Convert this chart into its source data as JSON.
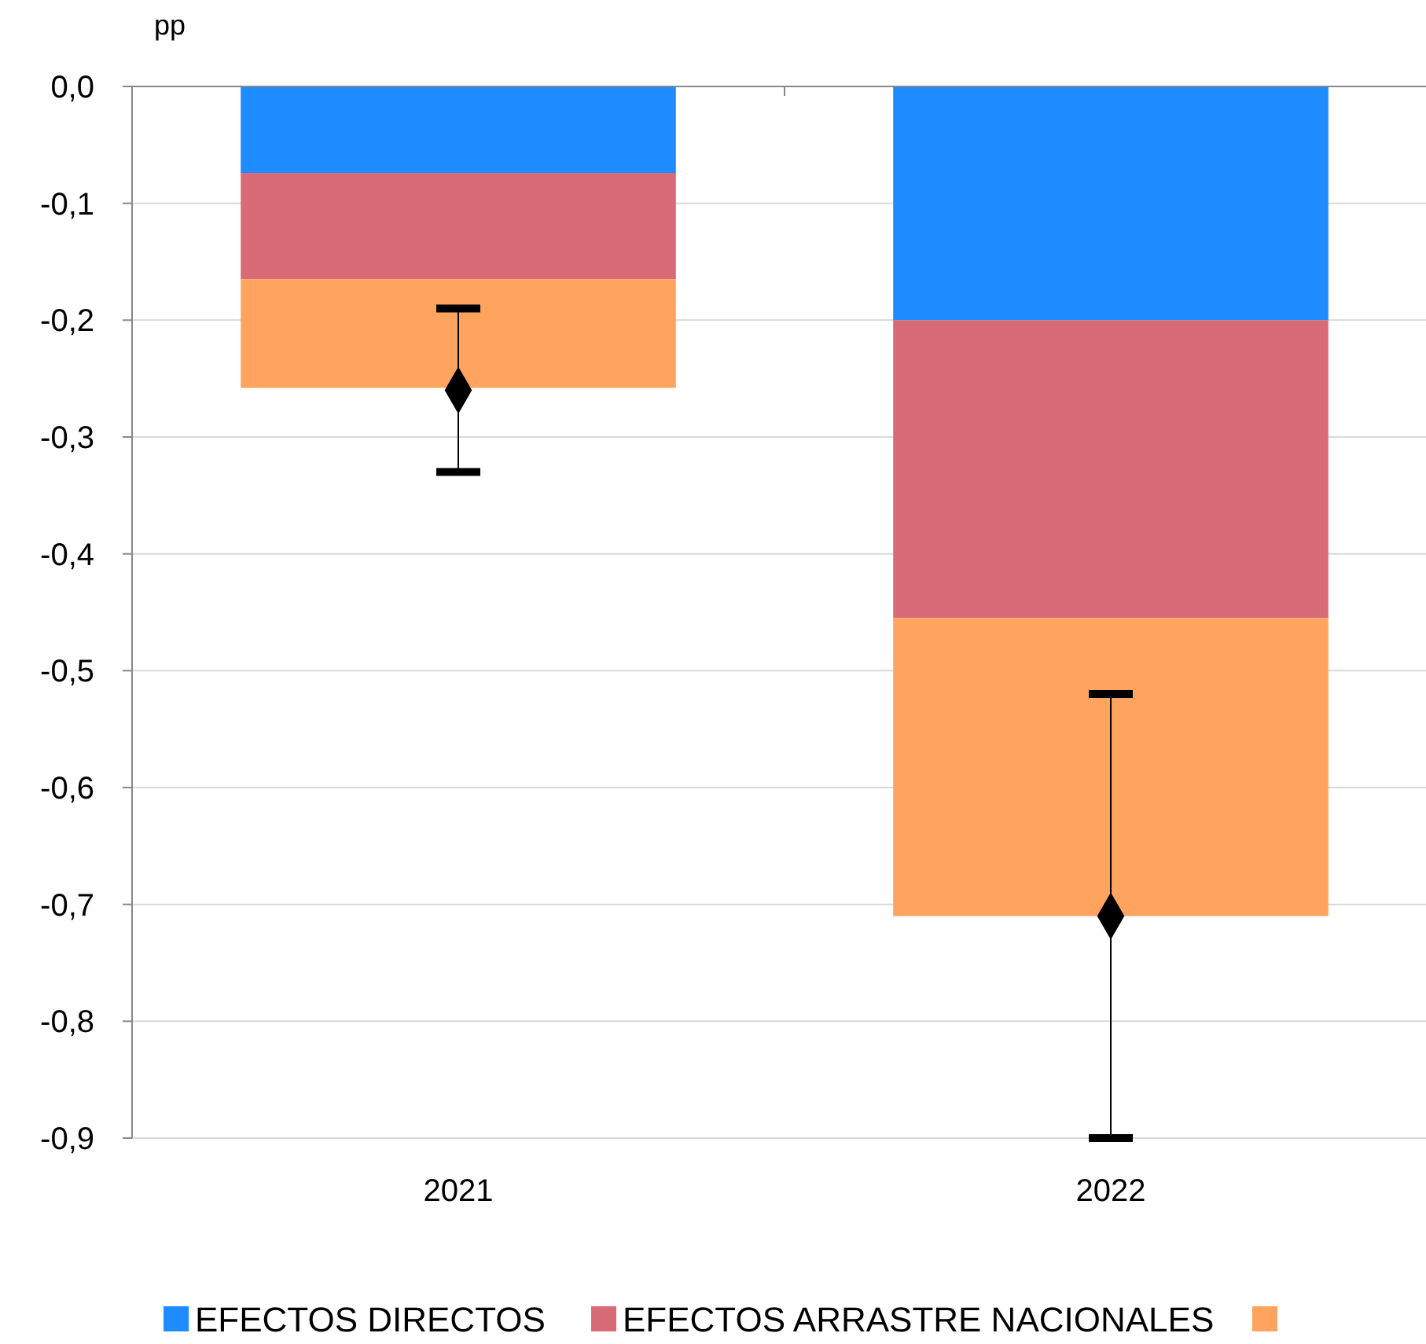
{
  "chart_data": {
    "type": "bar",
    "stacked": true,
    "ylabel": "pp",
    "categories": [
      "2021",
      "2022"
    ],
    "series": [
      {
        "name": "EFECTOS DIRECTOS",
        "color": "#1e8cff",
        "values": [
          -0.074,
          -0.2
        ]
      },
      {
        "name": "EFECTOS ARRASTRE NACIONALES",
        "color": "#d96b78",
        "values": [
          -0.091,
          -0.255
        ]
      },
      {
        "color": "#ffa45e",
        "values": [
          -0.093,
          -0.255
        ]
      },
      {
        "type": "scatter",
        "color": "#000000",
        "marker": "diamond",
        "values": [
          -0.26,
          -0.71
        ],
        "errors": [
          0.07,
          0.19
        ]
      }
    ],
    "ylim": [
      -0.9,
      0
    ],
    "yticks": [
      {
        "value": 0,
        "label": "0,0"
      },
      {
        "value": -0.1,
        "label": "-0,1"
      },
      {
        "value": -0.2,
        "label": "-0,2"
      },
      {
        "value": -0.3,
        "label": "-0,3"
      },
      {
        "value": -0.4,
        "label": "-0,4"
      },
      {
        "value": -0.5,
        "label": "-0,5"
      },
      {
        "value": -0.6,
        "label": "-0,6"
      },
      {
        "value": -0.7,
        "label": "-0,7"
      },
      {
        "value": -0.8,
        "label": "-0,8"
      },
      {
        "value": -0.9,
        "label": "-0,9"
      }
    ],
    "grid": "y",
    "legend": "bottom"
  }
}
